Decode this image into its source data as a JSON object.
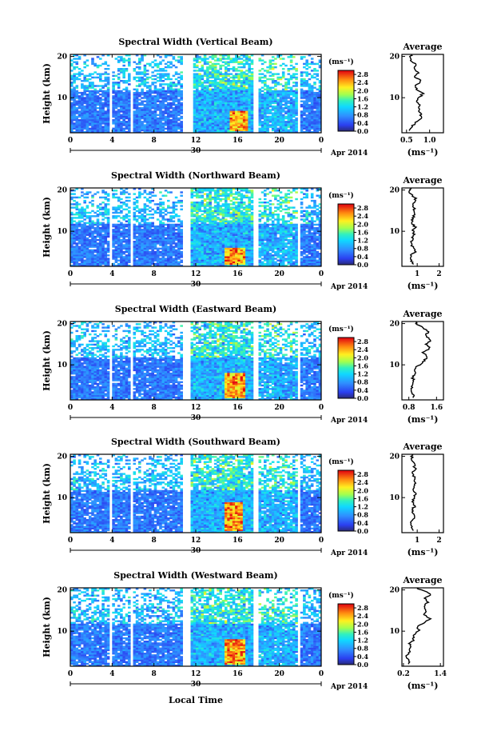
{
  "figure": {
    "xlabel": "Local Time",
    "y_axis_label": "Height (km)",
    "date_text": "Apr 2014",
    "day_text": "30",
    "unit_label": "(ms⁻¹)",
    "average_title": "Average",
    "average_xlabel": "(ms⁻¹)"
  },
  "chart_data": [
    {
      "type": "heatmap",
      "title": "Spectral Width (Vertical Beam)",
      "xlabel": "Local Time",
      "ylabel": "Height (km)",
      "x_ticks": [
        "0",
        "4",
        "8",
        "12",
        "16",
        "20",
        "0"
      ],
      "y_ticks": [
        "20",
        "10"
      ],
      "xlim": [
        0,
        24
      ],
      "ylim": [
        1.5,
        20.5
      ],
      "colorbar": {
        "label": "(ms⁻¹)",
        "ticks": [
          "2.8",
          "2.4",
          "2.0",
          "1.6",
          "1.2",
          "0.8",
          "0.4",
          "0.0"
        ],
        "range": [
          0,
          3.0
        ]
      },
      "data_gaps": [
        [
          3.7,
          4.0
        ],
        [
          5.8,
          6.0
        ],
        [
          10.8,
          11.0
        ],
        [
          11.0,
          11.7
        ],
        [
          17.6,
          18.1
        ],
        [
          21.8,
          22.0
        ]
      ],
      "high_region": {
        "time": [
          15.2,
          17.0
        ],
        "height": [
          2,
          7
        ]
      },
      "average_profile": {
        "xticks": [
          "0.5",
          "1.0"
        ],
        "xlim": [
          0.4,
          1.3
        ],
        "yticks": [
          "20",
          "10"
        ],
        "x": [
          0.55,
          0.62,
          0.7,
          0.85,
          0.8,
          0.75,
          0.8,
          0.72,
          0.78,
          0.85,
          0.72,
          0.7,
          0.82,
          0.68,
          0.75,
          0.65,
          0.7,
          0.6,
          0.58,
          0.6
        ],
        "y": [
          2,
          3,
          4,
          5,
          6,
          7,
          8,
          9,
          10,
          11,
          12,
          13,
          14,
          15,
          16,
          17,
          18,
          19,
          20,
          20.5
        ]
      }
    },
    {
      "type": "heatmap",
      "title": "Spectral Width (Northward Beam)",
      "xlabel": "Local Time",
      "ylabel": "Height (km)",
      "x_ticks": [
        "0",
        "4",
        "8",
        "12",
        "16",
        "20",
        "0"
      ],
      "y_ticks": [
        "20",
        "10"
      ],
      "xlim": [
        0,
        24
      ],
      "ylim": [
        1.5,
        20.5
      ],
      "colorbar": {
        "label": "(ms⁻¹)",
        "ticks": [
          "2.8",
          "2.4",
          "2.0",
          "1.6",
          "1.2",
          "0.8",
          "0.4",
          "0.0"
        ],
        "range": [
          0,
          3.0
        ]
      },
      "data_gaps": [
        [
          3.7,
          4.0
        ],
        [
          5.8,
          6.0
        ],
        [
          10.8,
          11.6
        ],
        [
          17.6,
          18.1
        ],
        [
          21.8,
          22.0
        ]
      ],
      "high_region": {
        "time": [
          14.8,
          16.8
        ],
        "height": [
          2,
          6
        ]
      },
      "average_profile": {
        "xticks": [
          "1",
          "2"
        ],
        "xlim": [
          0.3,
          2.2
        ],
        "yticks": [
          "20",
          "10"
        ],
        "x": [
          0.8,
          0.75,
          0.7,
          0.9,
          0.85,
          0.7,
          0.75,
          0.85,
          0.8,
          0.9,
          0.75,
          0.8,
          0.85,
          0.9,
          0.8,
          0.85,
          0.95,
          0.7,
          0.65,
          0.7
        ],
        "y": [
          2,
          3,
          4,
          5,
          6,
          7,
          8,
          9,
          10,
          11,
          12,
          13,
          14,
          15,
          16,
          17,
          18,
          19,
          20,
          20.5
        ]
      }
    },
    {
      "type": "heatmap",
      "title": "Spectral Width (Eastward Beam)",
      "xlabel": "Local Time",
      "ylabel": "Height (km)",
      "x_ticks": [
        "0",
        "4",
        "8",
        "12",
        "16",
        "20",
        "0"
      ],
      "y_ticks": [
        "20",
        "10"
      ],
      "xlim": [
        0,
        24
      ],
      "ylim": [
        1.5,
        20.5
      ],
      "colorbar": {
        "label": "(ms⁻¹)",
        "ticks": [
          "2.8",
          "2.4",
          "2.0",
          "1.6",
          "1.2",
          "0.8",
          "0.4",
          "0.0"
        ],
        "range": [
          0,
          3.0
        ]
      },
      "data_gaps": [
        [
          3.7,
          4.0
        ],
        [
          5.8,
          6.0
        ],
        [
          10.8,
          11.6
        ],
        [
          17.6,
          18.1
        ],
        [
          21.8,
          22.0
        ]
      ],
      "high_region": {
        "time": [
          14.8,
          16.8
        ],
        "height": [
          2,
          8
        ]
      },
      "average_profile": {
        "xticks": [
          "0.8",
          "1.6"
        ],
        "xlim": [
          0.6,
          1.8
        ],
        "yticks": [
          "20",
          "10"
        ],
        "x": [
          0.95,
          0.9,
          0.85,
          0.9,
          0.95,
          0.9,
          1.0,
          0.95,
          1.1,
          1.25,
          1.35,
          1.2,
          1.4,
          1.3,
          1.45,
          1.3,
          1.35,
          1.2,
          1.0,
          1.05
        ],
        "y": [
          2,
          3,
          4,
          5,
          6,
          7,
          8,
          9,
          10,
          11,
          12,
          13,
          14,
          15,
          16,
          17,
          18,
          19,
          20,
          20.5
        ]
      }
    },
    {
      "type": "heatmap",
      "title": "Spectral Width (Southward Beam)",
      "xlabel": "Local Time",
      "ylabel": "Height (km)",
      "x_ticks": [
        "0",
        "4",
        "8",
        "12",
        "16",
        "20",
        "0"
      ],
      "y_ticks": [
        "20",
        "10"
      ],
      "xlim": [
        0,
        24
      ],
      "ylim": [
        1.5,
        20.5
      ],
      "colorbar": {
        "label": "(ms⁻¹)",
        "ticks": [
          "2.8",
          "2.4",
          "2.0",
          "1.6",
          "1.2",
          "0.8",
          "0.4",
          "0.0"
        ],
        "range": [
          0,
          3.0
        ]
      },
      "data_gaps": [
        [
          3.7,
          4.0
        ],
        [
          5.8,
          6.0
        ],
        [
          10.8,
          11.6
        ],
        [
          17.6,
          18.1
        ],
        [
          21.8,
          22.0
        ]
      ],
      "high_region": {
        "time": [
          14.8,
          16.6
        ],
        "height": [
          2,
          9
        ]
      },
      "average_profile": {
        "xticks": [
          "1",
          "2"
        ],
        "xlim": [
          0.3,
          2.2
        ],
        "yticks": [
          "20",
          "10"
        ],
        "x": [
          0.8,
          0.75,
          0.7,
          0.85,
          0.8,
          0.75,
          0.9,
          0.8,
          0.85,
          0.9,
          0.8,
          0.85,
          0.9,
          0.85,
          0.8,
          0.9,
          0.85,
          0.8,
          0.75,
          0.8
        ],
        "y": [
          2,
          3,
          4,
          5,
          6,
          7,
          8,
          9,
          10,
          11,
          12,
          13,
          14,
          15,
          16,
          17,
          18,
          19,
          20,
          20.5
        ]
      }
    },
    {
      "type": "heatmap",
      "title": "Spectral Width (Westward Beam)",
      "xlabel": "Local Time",
      "ylabel": "Height (km)",
      "x_ticks": [
        "0",
        "4",
        "8",
        "12",
        "16",
        "20",
        "0"
      ],
      "y_ticks": [
        "20",
        "10"
      ],
      "xlim": [
        0,
        24
      ],
      "ylim": [
        1.5,
        20.5
      ],
      "colorbar": {
        "label": "(ms⁻¹)",
        "ticks": [
          "2.8",
          "2.4",
          "2.0",
          "1.6",
          "1.2",
          "0.8",
          "0.4",
          "0.0"
        ],
        "range": [
          0,
          3.0
        ]
      },
      "data_gaps": [
        [
          3.7,
          4.0
        ],
        [
          5.8,
          6.0
        ],
        [
          10.8,
          11.6
        ],
        [
          17.6,
          18.1
        ],
        [
          21.8,
          22.0
        ]
      ],
      "high_region": {
        "time": [
          14.8,
          16.8
        ],
        "height": [
          2,
          8
        ]
      },
      "average_profile": {
        "xticks": [
          "0.2",
          "1.4"
        ],
        "xlim": [
          0.15,
          1.5
        ],
        "yticks": [
          "20",
          "10"
        ],
        "x": [
          0.4,
          0.35,
          0.3,
          0.4,
          0.45,
          0.4,
          0.55,
          0.5,
          0.7,
          0.65,
          0.85,
          1.05,
          0.9,
          0.95,
          0.85,
          1.0,
          0.9,
          1.1,
          0.8,
          0.6
        ],
        "y": [
          2,
          3,
          4,
          5,
          6,
          7,
          8,
          9,
          10,
          11,
          12,
          13,
          14,
          15,
          16,
          17,
          18,
          19,
          20,
          20.5
        ]
      }
    }
  ]
}
